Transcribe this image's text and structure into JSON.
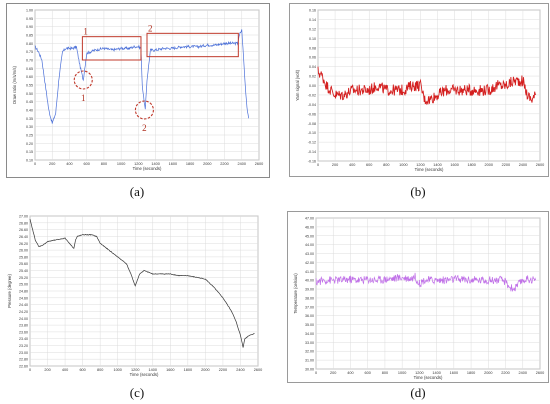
{
  "captions": [
    "(a)",
    "(b)",
    "(c)",
    "(d)"
  ],
  "chart_data": [
    {
      "id": "a",
      "type": "line",
      "xlabel": "Time (seconds)",
      "ylabel": "Draw ratio (m/s/m/s)",
      "xlim": [
        0,
        2600
      ],
      "ylim": [
        0.1,
        1.0
      ],
      "xticks": [
        0,
        200,
        400,
        600,
        800,
        1000,
        1200,
        1400,
        1600,
        1800,
        2000,
        2200,
        2400,
        2600
      ],
      "yticks": [
        0.1,
        0.15,
        0.2,
        0.25,
        0.3,
        0.35,
        0.4,
        0.45,
        0.5,
        0.55,
        0.6,
        0.65,
        0.7,
        0.75,
        0.8,
        0.85,
        0.9,
        0.95,
        1.0
      ],
      "line_color": "#4a6fd8",
      "series": [
        {
          "x": [
            0,
            40,
            80,
            120,
            160,
            200,
            240,
            280,
            320,
            360,
            400,
            440,
            480,
            520,
            560,
            600,
            700,
            800,
            900,
            1000,
            1100,
            1150,
            1200,
            1230,
            1245,
            1260,
            1280,
            1300,
            1340,
            1400,
            1500,
            1600,
            1700,
            1800,
            1900,
            2000,
            2100,
            2200,
            2300,
            2350,
            2380,
            2400,
            2420,
            2440,
            2460,
            2480
          ],
          "y": [
            0.78,
            0.75,
            0.7,
            0.55,
            0.4,
            0.32,
            0.38,
            0.6,
            0.75,
            0.77,
            0.77,
            0.77,
            0.78,
            0.67,
            0.58,
            0.74,
            0.76,
            0.77,
            0.76,
            0.77,
            0.77,
            0.78,
            0.78,
            0.77,
            0.55,
            0.48,
            0.4,
            0.58,
            0.76,
            0.76,
            0.77,
            0.77,
            0.78,
            0.78,
            0.78,
            0.79,
            0.79,
            0.8,
            0.8,
            0.8,
            0.86,
            0.88,
            0.72,
            0.55,
            0.42,
            0.35
          ]
        }
      ],
      "annotations": [
        {
          "label": "1",
          "kind": "rectangle",
          "x_range": [
            550,
            1230
          ],
          "y_range": [
            0.7,
            0.84
          ]
        },
        {
          "label": "2",
          "kind": "rectangle",
          "x_range": [
            1300,
            2360
          ],
          "y_range": [
            0.72,
            0.86
          ]
        },
        {
          "label": "1",
          "kind": "circle",
          "x": 560,
          "y": 0.58
        },
        {
          "label": "2",
          "kind": "circle",
          "x": 1270,
          "y": 0.4
        }
      ]
    },
    {
      "id": "b",
      "type": "line",
      "xlabel": "Time (seconds)",
      "ylabel": "Yarn signal (volt)",
      "xlim": [
        0,
        2600
      ],
      "ylim": [
        -0.16,
        0.16
      ],
      "xticks": [
        0,
        200,
        400,
        600,
        800,
        1000,
        1200,
        1400,
        1600,
        1800,
        2000,
        2200,
        2400,
        2600
      ],
      "yticks": [
        -0.16,
        -0.14,
        -0.12,
        -0.1,
        -0.08,
        -0.06,
        -0.04,
        -0.02,
        0.0,
        0.02,
        0.04,
        0.06,
        0.08,
        0.1,
        0.12,
        0.14,
        0.16
      ],
      "line_color": "#d42020",
      "series": [
        {
          "x": [
            0,
            50,
            100,
            150,
            200,
            300,
            400,
            500,
            600,
            700,
            800,
            900,
            1000,
            1100,
            1200,
            1250,
            1300,
            1400,
            1500,
            1600,
            1700,
            1800,
            1900,
            2000,
            2100,
            2200,
            2300,
            2400,
            2450,
            2500,
            2550
          ],
          "y": [
            0.03,
            0.02,
            0.0,
            -0.01,
            -0.02,
            -0.02,
            -0.01,
            -0.01,
            -0.01,
            0.0,
            -0.01,
            -0.01,
            -0.01,
            0.0,
            0.0,
            -0.03,
            -0.03,
            -0.02,
            -0.01,
            -0.01,
            -0.01,
            -0.01,
            -0.01,
            -0.01,
            0.0,
            0.0,
            0.01,
            0.01,
            -0.02,
            -0.03,
            -0.02
          ]
        }
      ]
    },
    {
      "id": "c",
      "type": "line",
      "xlabel": "Time (seconds)",
      "ylabel": "Pressure (degree)",
      "xlim": [
        0,
        2600
      ],
      "ylim": [
        22.6,
        27.0
      ],
      "xticks": [
        0,
        200,
        400,
        600,
        800,
        1000,
        1200,
        1400,
        1600,
        1800,
        2000,
        2200,
        2400,
        2600
      ],
      "yticks": [
        22.6,
        22.8,
        23.0,
        23.2,
        23.4,
        23.6,
        23.8,
        24.0,
        24.2,
        24.4,
        24.6,
        24.8,
        25.0,
        25.2,
        25.4,
        25.6,
        25.8,
        26.0,
        26.2,
        26.4,
        26.6,
        26.8,
        27.0
      ],
      "line_color": "#333333",
      "series": [
        {
          "x": [
            0,
            30,
            60,
            100,
            150,
            200,
            300,
            400,
            450,
            500,
            520,
            540,
            600,
            700,
            760,
            800,
            900,
            1000,
            1100,
            1150,
            1200,
            1250,
            1300,
            1400,
            1500,
            1600,
            1700,
            1800,
            1900,
            2000,
            2100,
            2200,
            2300,
            2350,
            2400,
            2430,
            2450,
            2500,
            2560
          ],
          "y": [
            26.9,
            26.6,
            26.3,
            26.1,
            26.15,
            26.25,
            26.3,
            26.35,
            26.2,
            26.05,
            26.3,
            26.4,
            26.45,
            26.45,
            26.4,
            26.2,
            26.0,
            25.8,
            25.6,
            25.3,
            24.95,
            25.3,
            25.4,
            25.3,
            25.3,
            25.3,
            25.25,
            25.25,
            25.2,
            25.15,
            24.9,
            24.6,
            24.2,
            23.9,
            23.5,
            23.15,
            23.4,
            23.5,
            23.55
          ]
        }
      ]
    },
    {
      "id": "d",
      "type": "line",
      "xlabel": "Time (seconds)",
      "ylabel": "Temperature (celsius)",
      "xlim": [
        0,
        2600
      ],
      "ylim": [
        30.0,
        47.0
      ],
      "xticks": [
        0,
        200,
        400,
        600,
        800,
        1000,
        1200,
        1400,
        1600,
        1800,
        2000,
        2200,
        2400,
        2600
      ],
      "yticks": [
        30.0,
        31.0,
        32.0,
        33.0,
        34.0,
        35.0,
        36.0,
        37.0,
        38.0,
        39.0,
        40.0,
        41.0,
        42.0,
        43.0,
        44.0,
        45.0,
        46.0,
        47.0
      ],
      "line_color": "#c070e8",
      "series": [
        {
          "x": [
            0,
            50,
            100,
            200,
            300,
            400,
            500,
            600,
            700,
            800,
            900,
            1000,
            1100,
            1150,
            1200,
            1250,
            1300,
            1400,
            1500,
            1600,
            1700,
            1800,
            1900,
            2000,
            2100,
            2150,
            2200,
            2250,
            2300,
            2350,
            2400,
            2450,
            2500,
            2550
          ],
          "y": [
            39.8,
            39.9,
            40.0,
            40.0,
            40.0,
            40.1,
            40.0,
            40.1,
            40.0,
            40.1,
            40.2,
            40.3,
            40.2,
            40.4,
            39.6,
            40.0,
            40.0,
            40.0,
            40.0,
            40.1,
            40.1,
            40.0,
            40.0,
            40.0,
            40.0,
            40.0,
            39.8,
            39.2,
            39.0,
            39.5,
            40.0,
            40.1,
            40.1,
            40.0
          ]
        }
      ]
    }
  ]
}
